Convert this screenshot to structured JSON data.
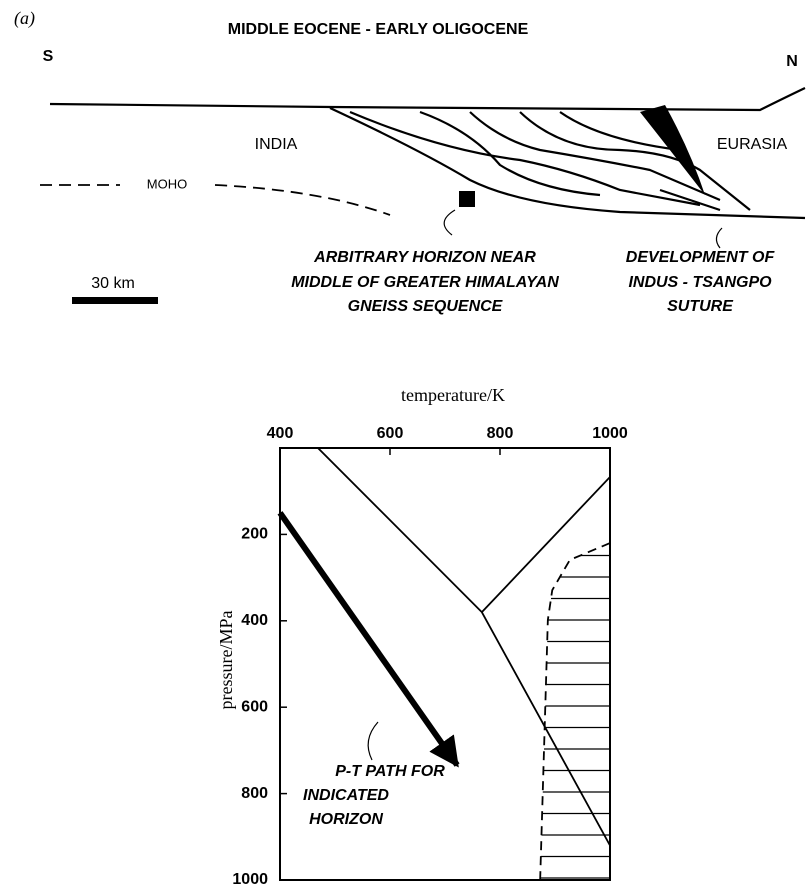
{
  "panel_label": "(a)",
  "diagram": {
    "title": "MIDDLE EOCENE - EARLY OLIGOCENE",
    "south": "S",
    "north": "N",
    "india": "INDIA",
    "eurasia": "EURASIA",
    "moho": "MOHO",
    "horizon_note": [
      "ARBITRARY HORIZON NEAR",
      "MIDDLE OF GREATER HIMALAYAN",
      "GNEISS SEQUENCE"
    ],
    "suture_note": [
      "DEVELOPMENT OF",
      "INDUS - TSANGPO",
      "SUTURE"
    ],
    "scale": "30 km"
  },
  "chart_data": {
    "type": "line",
    "xlabel": "temperature/K",
    "ylabel": "pressure/MPa",
    "xlim": [
      400,
      1000
    ],
    "xticks": [
      400,
      600,
      800,
      1000
    ],
    "ylim": [
      0,
      1000
    ],
    "yticks": [
      200,
      400,
      600,
      800,
      1000
    ],
    "y_inverted": true,
    "series": [
      {
        "color": "#000000",
        "x": [
          469,
          767,
          1000
        ],
        "values": [
          0,
          380,
          920
        ]
      },
      {
        "color": "#000000",
        "x": [
          767,
          1000
        ],
        "values": [
          380,
          67
        ]
      },
      {
        "color": "#000000",
        "style": "dashed",
        "hatched": true,
        "x": [
          1000,
          927,
          895,
          887,
          873
        ],
        "values": [
          220,
          259,
          329,
          398,
          1000
        ]
      },
      {
        "color": "#000000",
        "style": "arrow",
        "x": [
          400,
          722
        ],
        "values": [
          150,
          734
        ]
      }
    ],
    "annotation": [
      "P-T PATH FOR",
      "INDICATED",
      "HORIZON"
    ]
  }
}
